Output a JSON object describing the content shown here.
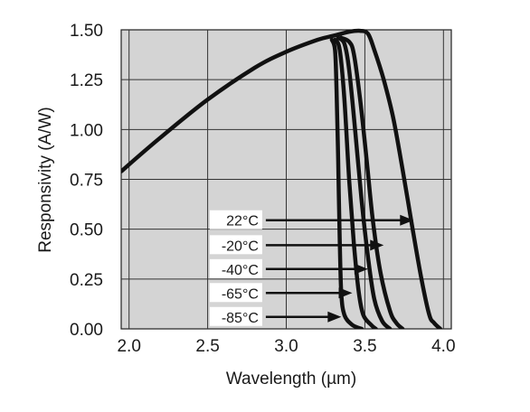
{
  "chart_data": {
    "type": "line",
    "title": "",
    "xlabel": "Wavelength (µm)",
    "ylabel": "Responsivity (A/W)",
    "xlim": [
      1.95,
      4.05
    ],
    "ylim": [
      0.0,
      1.5
    ],
    "xticks": [
      2.0,
      2.5,
      3.0,
      3.5,
      4.0
    ],
    "xtick_labels": [
      "2.0",
      "2.5",
      "3.0",
      "3.5",
      "4.0"
    ],
    "yticks": [
      0.0,
      0.25,
      0.5,
      0.75,
      1.0,
      1.25,
      1.5
    ],
    "ytick_labels": [
      "0.00",
      "0.25",
      "0.50",
      "0.75",
      "1.00",
      "1.25",
      "1.50"
    ],
    "grid": true,
    "plot_background": "#d4d4d4",
    "line_color": "#111111",
    "series": [
      {
        "name": "22°C",
        "points": [
          [
            1.95,
            0.79
          ],
          [
            2.2,
            0.96
          ],
          [
            2.5,
            1.15
          ],
          [
            2.8,
            1.31
          ],
          [
            3.0,
            1.39
          ],
          [
            3.2,
            1.45
          ],
          [
            3.3,
            1.47
          ],
          [
            3.4,
            1.49
          ],
          [
            3.47,
            1.495
          ],
          [
            3.52,
            1.48
          ],
          [
            3.56,
            1.4
          ],
          [
            3.62,
            1.25
          ],
          [
            3.68,
            1.06
          ],
          [
            3.74,
            0.8
          ],
          [
            3.8,
            0.52
          ],
          [
            3.86,
            0.25
          ],
          [
            3.91,
            0.07
          ],
          [
            3.94,
            0.03
          ],
          [
            3.98,
            0.0
          ]
        ]
      },
      {
        "name": "-20°C",
        "points": [
          [
            3.35,
            1.46
          ],
          [
            3.4,
            1.44
          ],
          [
            3.43,
            1.38
          ],
          [
            3.47,
            1.15
          ],
          [
            3.51,
            0.86
          ],
          [
            3.55,
            0.55
          ],
          [
            3.6,
            0.28
          ],
          [
            3.66,
            0.09
          ],
          [
            3.7,
            0.03
          ],
          [
            3.74,
            0.0
          ]
        ]
      },
      {
        "name": "-40°C",
        "points": [
          [
            3.33,
            1.46
          ],
          [
            3.37,
            1.43
          ],
          [
            3.4,
            1.3
          ],
          [
            3.44,
            0.98
          ],
          [
            3.48,
            0.64
          ],
          [
            3.52,
            0.36
          ],
          [
            3.56,
            0.15
          ],
          [
            3.61,
            0.04
          ],
          [
            3.66,
            0.0
          ]
        ]
      },
      {
        "name": "-65°C",
        "points": [
          [
            3.31,
            1.45
          ],
          [
            3.34,
            1.4
          ],
          [
            3.37,
            1.15
          ],
          [
            3.4,
            0.75
          ],
          [
            3.43,
            0.43
          ],
          [
            3.46,
            0.19
          ],
          [
            3.49,
            0.07
          ],
          [
            3.54,
            0.02
          ],
          [
            3.57,
            0.0
          ]
        ]
      },
      {
        "name": "-85°C",
        "points": [
          [
            3.29,
            1.45
          ],
          [
            3.31,
            1.4
          ],
          [
            3.32,
            1.2
          ],
          [
            3.33,
            0.85
          ],
          [
            3.34,
            0.45
          ],
          [
            3.35,
            0.18
          ],
          [
            3.37,
            0.07
          ],
          [
            3.42,
            0.02
          ],
          [
            3.48,
            0.0
          ]
        ]
      }
    ],
    "annotations": [
      {
        "label": "22°C",
        "arrow_from_x": 2.87,
        "arrow_to_x": 3.81,
        "y": 0.545
      },
      {
        "label": "-20°C",
        "arrow_from_x": 2.87,
        "arrow_to_x": 3.62,
        "y": 0.42
      },
      {
        "label": "-40°C",
        "arrow_from_x": 2.87,
        "arrow_to_x": 3.52,
        "y": 0.3
      },
      {
        "label": "-65°C",
        "arrow_from_x": 2.87,
        "arrow_to_x": 3.42,
        "y": 0.18
      },
      {
        "label": "-85°C",
        "arrow_from_x": 2.87,
        "arrow_to_x": 3.35,
        "y": 0.06
      }
    ]
  }
}
